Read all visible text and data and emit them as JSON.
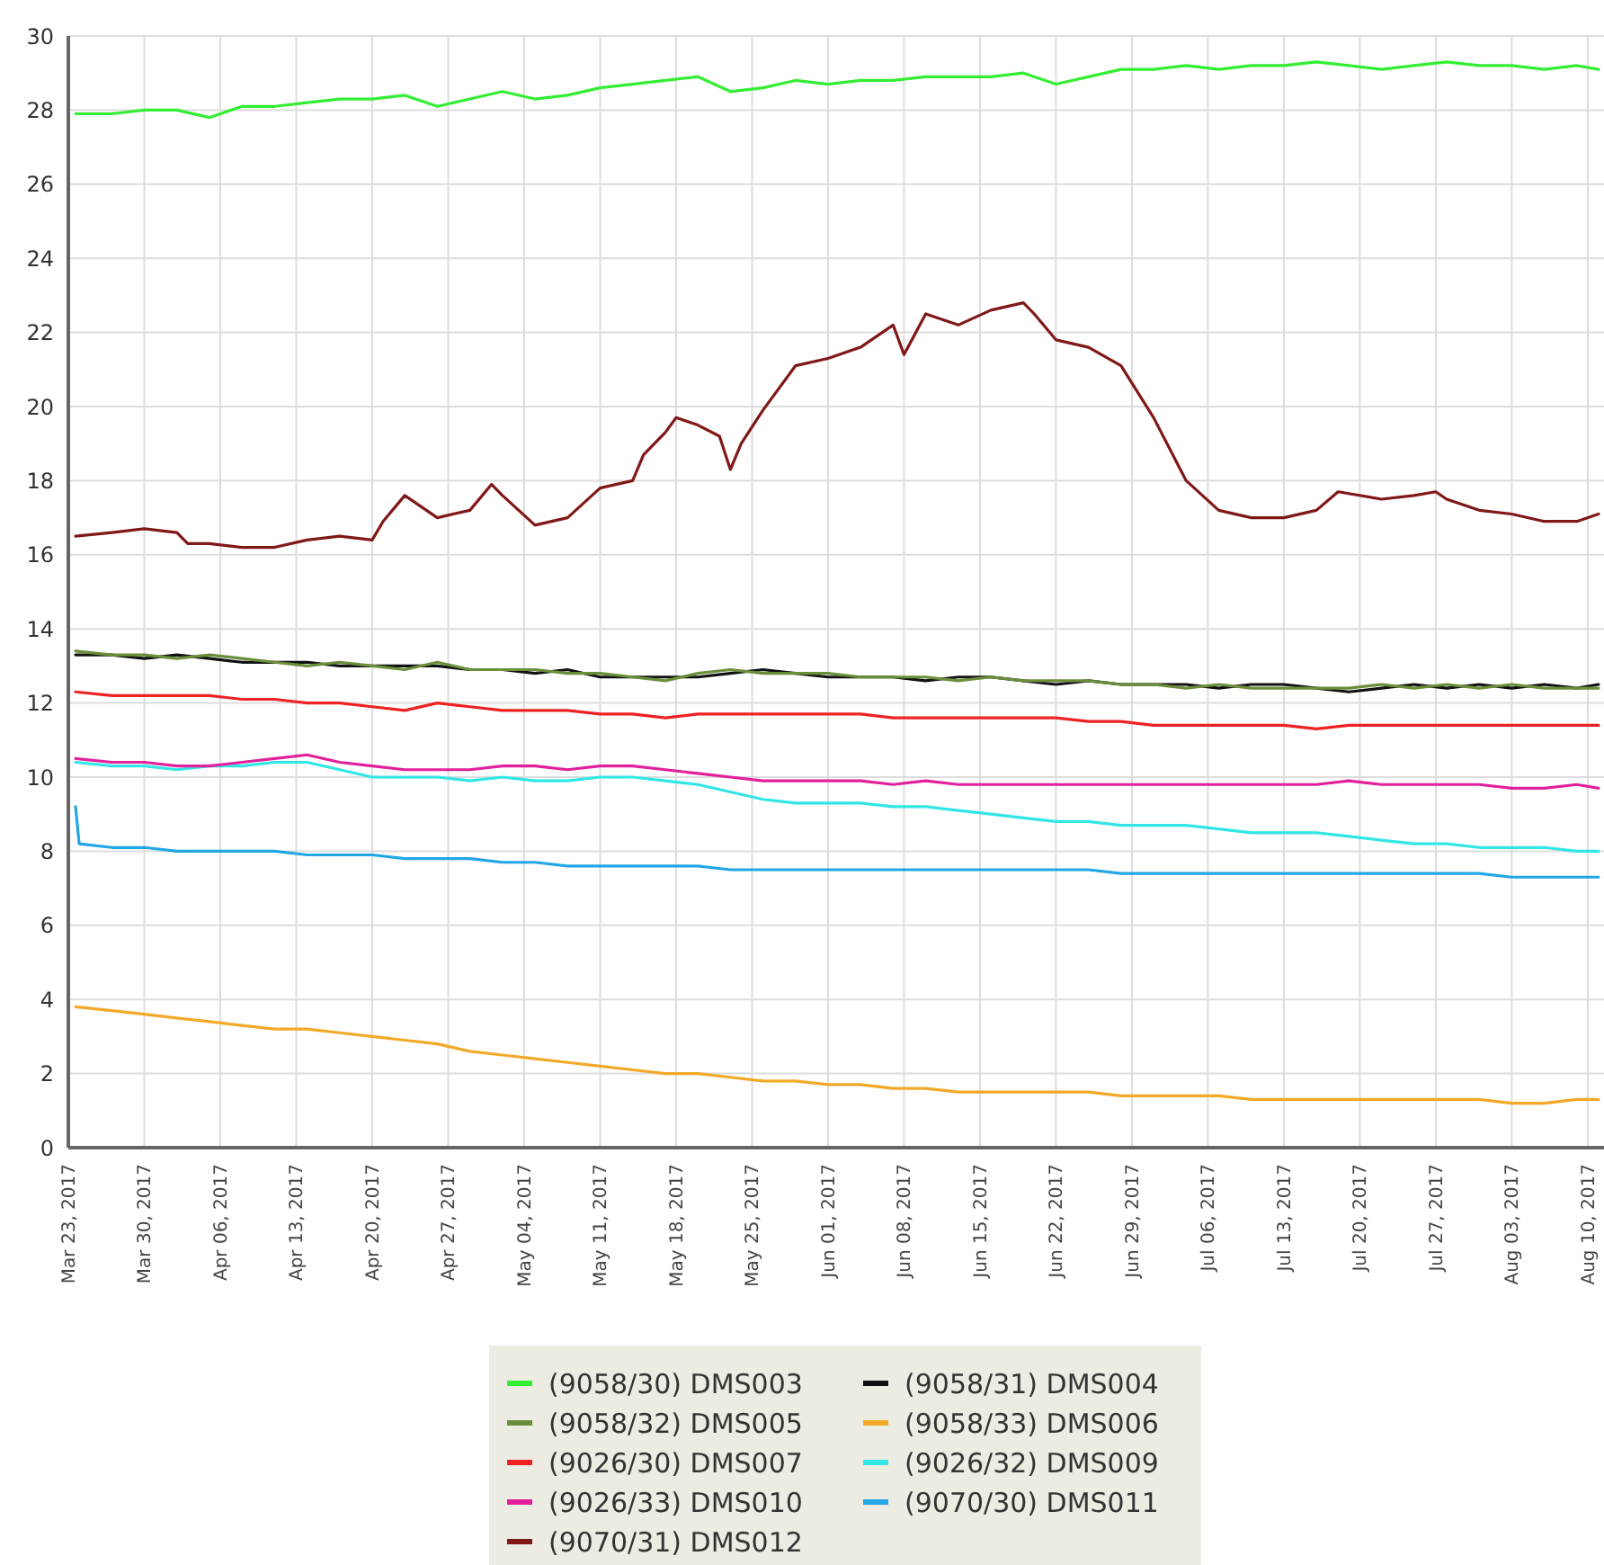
{
  "chart_data": {
    "type": "line",
    "x": [
      "2017-03-23T16:00",
      "2017-03-27",
      "2017-03-30",
      "2017-04-02",
      "2017-04-05",
      "2017-04-08",
      "2017-04-11",
      "2017-04-14",
      "2017-04-17",
      "2017-04-20",
      "2017-04-23",
      "2017-04-26",
      "2017-04-29",
      "2017-05-02",
      "2017-05-05",
      "2017-05-08",
      "2017-05-11",
      "2017-05-14",
      "2017-05-17",
      "2017-05-20",
      "2017-05-23",
      "2017-05-26",
      "2017-05-29",
      "2017-06-01",
      "2017-06-04",
      "2017-06-07",
      "2017-06-10",
      "2017-06-13",
      "2017-06-16",
      "2017-06-19",
      "2017-06-22",
      "2017-06-25",
      "2017-06-28",
      "2017-07-01",
      "2017-07-04",
      "2017-07-07",
      "2017-07-10",
      "2017-07-13",
      "2017-07-16",
      "2017-07-19",
      "2017-07-22",
      "2017-07-25",
      "2017-07-28",
      "2017-07-31",
      "2017-08-03",
      "2017-08-06",
      "2017-08-09",
      "2017-08-11"
    ],
    "series": [
      {
        "name": "(9058/30) DMS003",
        "color": "#33ee33",
        "values": [
          27.9,
          27.9,
          28.0,
          28.0,
          27.8,
          28.1,
          28.1,
          28.2,
          28.3,
          28.3,
          28.4,
          28.1,
          28.3,
          28.5,
          28.3,
          28.4,
          28.6,
          28.7,
          28.8,
          28.9,
          28.5,
          28.6,
          28.8,
          28.7,
          28.8,
          28.8,
          28.9,
          28.9,
          28.9,
          29.0,
          28.7,
          28.9,
          29.1,
          29.1,
          29.2,
          29.1,
          29.2,
          29.2,
          29.3,
          29.2,
          29.1,
          29.2,
          29.3,
          29.2,
          29.2,
          29.1,
          29.2,
          29.1
        ]
      },
      {
        "name": "(9058/31) DMS004",
        "color": "#111111",
        "values": [
          13.3,
          13.3,
          13.2,
          13.3,
          13.2,
          13.1,
          13.1,
          13.1,
          13.0,
          13.0,
          13.0,
          13.0,
          12.9,
          12.9,
          12.8,
          12.9,
          12.7,
          12.7,
          12.7,
          12.7,
          12.8,
          12.9,
          12.8,
          12.7,
          12.7,
          12.7,
          12.6,
          12.7,
          12.7,
          12.6,
          12.5,
          12.6,
          12.5,
          12.5,
          12.5,
          12.4,
          12.5,
          12.5,
          12.4,
          12.3,
          12.4,
          12.5,
          12.4,
          12.5,
          12.4,
          12.5,
          12.4,
          12.5
        ]
      },
      {
        "name": "(9058/32) DMS005",
        "color": "#6b8e3a",
        "values": [
          13.4,
          13.3,
          13.3,
          13.2,
          13.3,
          13.2,
          13.1,
          13.0,
          13.1,
          13.0,
          12.9,
          13.1,
          12.9,
          12.9,
          12.9,
          12.8,
          12.8,
          12.7,
          12.6,
          12.8,
          12.9,
          12.8,
          12.8,
          12.8,
          12.7,
          12.7,
          12.7,
          12.6,
          12.7,
          12.6,
          12.6,
          12.6,
          12.5,
          12.5,
          12.4,
          12.5,
          12.4,
          12.4,
          12.4,
          12.4,
          12.5,
          12.4,
          12.5,
          12.4,
          12.5,
          12.4,
          12.4,
          12.4
        ]
      },
      {
        "name": "(9058/33) DMS006",
        "color": "#f2a928",
        "values": [
          3.8,
          3.7,
          3.6,
          3.5,
          3.4,
          3.3,
          3.2,
          3.2,
          3.1,
          3.0,
          2.9,
          2.8,
          2.6,
          2.5,
          2.4,
          2.3,
          2.2,
          2.1,
          2.0,
          2.0,
          1.9,
          1.8,
          1.8,
          1.7,
          1.7,
          1.6,
          1.6,
          1.5,
          1.5,
          1.5,
          1.5,
          1.5,
          1.4,
          1.4,
          1.4,
          1.4,
          1.3,
          1.3,
          1.3,
          1.3,
          1.3,
          1.3,
          1.3,
          1.3,
          1.2,
          1.2,
          1.3,
          1.3
        ]
      },
      {
        "name": "(9026/30) DMS007",
        "color": "#ee2222",
        "values": [
          12.3,
          12.2,
          12.2,
          12.2,
          12.2,
          12.1,
          12.1,
          12.0,
          12.0,
          11.9,
          11.8,
          12.0,
          11.9,
          11.8,
          11.8,
          11.8,
          11.7,
          11.7,
          11.6,
          11.7,
          11.7,
          11.7,
          11.7,
          11.7,
          11.7,
          11.6,
          11.6,
          11.6,
          11.6,
          11.6,
          11.6,
          11.5,
          11.5,
          11.4,
          11.4,
          11.4,
          11.4,
          11.4,
          11.3,
          11.4,
          11.4,
          11.4,
          11.4,
          11.4,
          11.4,
          11.4,
          11.4,
          11.4
        ]
      },
      {
        "name": "(9026/32) DMS009",
        "color": "#33e6e6",
        "values": [
          10.4,
          10.3,
          10.3,
          10.2,
          10.3,
          10.3,
          10.4,
          10.4,
          10.2,
          10.0,
          10.0,
          10.0,
          9.9,
          10.0,
          9.9,
          9.9,
          10.0,
          10.0,
          9.9,
          9.8,
          9.6,
          9.4,
          9.3,
          9.3,
          9.3,
          9.2,
          9.2,
          9.1,
          9.0,
          8.9,
          8.8,
          8.8,
          8.7,
          8.7,
          8.7,
          8.6,
          8.5,
          8.5,
          8.5,
          8.4,
          8.3,
          8.2,
          8.2,
          8.1,
          8.1,
          8.1,
          8.0,
          8.0
        ]
      },
      {
        "name": "(9026/33) DMS010",
        "color": "#e2209c",
        "values": [
          10.5,
          10.4,
          10.4,
          10.3,
          10.3,
          10.4,
          10.5,
          10.6,
          10.4,
          10.3,
          10.2,
          10.2,
          10.2,
          10.3,
          10.3,
          10.2,
          10.3,
          10.3,
          10.2,
          10.1,
          10.0,
          9.9,
          9.9,
          9.9,
          9.9,
          9.8,
          9.9,
          9.8,
          9.8,
          9.8,
          9.8,
          9.8,
          9.8,
          9.8,
          9.8,
          9.8,
          9.8,
          9.8,
          9.8,
          9.9,
          9.8,
          9.8,
          9.8,
          9.8,
          9.7,
          9.7,
          9.8,
          9.7
        ]
      },
      {
        "name": "(9070/30) DMS011",
        "color": "#22a6e6",
        "x": [
          "2017-03-23T16:00",
          "2017-03-24",
          "2017-03-27",
          "2017-03-30",
          "2017-04-02",
          "2017-04-05",
          "2017-04-08",
          "2017-04-11",
          "2017-04-14",
          "2017-04-17",
          "2017-04-20",
          "2017-04-23",
          "2017-04-26",
          "2017-04-29",
          "2017-05-02",
          "2017-05-05",
          "2017-05-08",
          "2017-05-11",
          "2017-05-14",
          "2017-05-17",
          "2017-05-20",
          "2017-05-23",
          "2017-05-26",
          "2017-05-29",
          "2017-06-01",
          "2017-06-04",
          "2017-06-07",
          "2017-06-10",
          "2017-06-13",
          "2017-06-16",
          "2017-06-19",
          "2017-06-22",
          "2017-06-25",
          "2017-06-28",
          "2017-07-01",
          "2017-07-04",
          "2017-07-07",
          "2017-07-10",
          "2017-07-13",
          "2017-07-16",
          "2017-07-19",
          "2017-07-22",
          "2017-07-25",
          "2017-07-28",
          "2017-07-31",
          "2017-08-03",
          "2017-08-06",
          "2017-08-09",
          "2017-08-11"
        ],
        "values": [
          9.2,
          8.2,
          8.1,
          8.1,
          8.0,
          8.0,
          8.0,
          8.0,
          7.9,
          7.9,
          7.9,
          7.8,
          7.8,
          7.8,
          7.7,
          7.7,
          7.6,
          7.6,
          7.6,
          7.6,
          7.6,
          7.5,
          7.5,
          7.5,
          7.5,
          7.5,
          7.5,
          7.5,
          7.5,
          7.5,
          7.5,
          7.5,
          7.5,
          7.4,
          7.4,
          7.4,
          7.4,
          7.4,
          7.4,
          7.4,
          7.4,
          7.4,
          7.4,
          7.4,
          7.4,
          7.3,
          7.3,
          7.3,
          7.3
        ]
      },
      {
        "name": "(9070/31) DMS012",
        "color": "#801818",
        "x": [
          "2017-03-23T16:00",
          "2017-03-27",
          "2017-03-30",
          "2017-04-02",
          "2017-04-03",
          "2017-04-05",
          "2017-04-08",
          "2017-04-11",
          "2017-04-14",
          "2017-04-17",
          "2017-04-20",
          "2017-04-21",
          "2017-04-23",
          "2017-04-26",
          "2017-04-29",
          "2017-05-01",
          "2017-05-02",
          "2017-05-05",
          "2017-05-08",
          "2017-05-11",
          "2017-05-14",
          "2017-05-15",
          "2017-05-17",
          "2017-05-18",
          "2017-05-20",
          "2017-05-22",
          "2017-05-23",
          "2017-05-24",
          "2017-05-26",
          "2017-05-29",
          "2017-06-01",
          "2017-06-04",
          "2017-06-07",
          "2017-06-08",
          "2017-06-10",
          "2017-06-13",
          "2017-06-16",
          "2017-06-19",
          "2017-06-20",
          "2017-06-22",
          "2017-06-25",
          "2017-06-28",
          "2017-07-01",
          "2017-07-04",
          "2017-07-07",
          "2017-07-10",
          "2017-07-13",
          "2017-07-16",
          "2017-07-18",
          "2017-07-22",
          "2017-07-25",
          "2017-07-27",
          "2017-07-28",
          "2017-07-31",
          "2017-08-03",
          "2017-08-06",
          "2017-08-09",
          "2017-08-11"
        ],
        "values": [
          16.5,
          16.6,
          16.7,
          16.6,
          16.3,
          16.3,
          16.2,
          16.2,
          16.4,
          16.5,
          16.4,
          16.9,
          17.6,
          17.0,
          17.2,
          17.9,
          17.6,
          16.8,
          17.0,
          17.8,
          18.0,
          18.7,
          19.3,
          19.7,
          19.5,
          19.2,
          18.3,
          19.0,
          19.9,
          21.1,
          21.3,
          21.6,
          22.2,
          21.4,
          22.5,
          22.2,
          22.6,
          22.8,
          22.5,
          21.8,
          21.6,
          21.1,
          19.7,
          18.0,
          17.2,
          17.0,
          17.0,
          17.2,
          17.7,
          17.5,
          17.6,
          17.7,
          17.5,
          17.2,
          17.1,
          16.9,
          16.9,
          17.1
        ]
      }
    ],
    "xlim": [
      "2017-03-23",
      "2017-08-11T12:00"
    ],
    "xticks": [
      {
        "value": "2017-03-23",
        "label": "Mar 23, 2017"
      },
      {
        "value": "2017-03-30",
        "label": "Mar 30, 2017"
      },
      {
        "value": "2017-04-06",
        "label": "Apr 06, 2017"
      },
      {
        "value": "2017-04-13",
        "label": "Apr 13, 2017"
      },
      {
        "value": "2017-04-20",
        "label": "Apr 20, 2017"
      },
      {
        "value": "2017-04-27",
        "label": "Apr 27, 2017"
      },
      {
        "value": "2017-05-04",
        "label": "May 04, 2017"
      },
      {
        "value": "2017-05-11",
        "label": "May 11, 2017"
      },
      {
        "value": "2017-05-18",
        "label": "May 18, 2017"
      },
      {
        "value": "2017-05-25",
        "label": "May 25, 2017"
      },
      {
        "value": "2017-06-01",
        "label": "Jun 01, 2017"
      },
      {
        "value": "2017-06-08",
        "label": "Jun 08, 2017"
      },
      {
        "value": "2017-06-15",
        "label": "Jun 15, 2017"
      },
      {
        "value": "2017-06-22",
        "label": "Jun 22, 2017"
      },
      {
        "value": "2017-06-29",
        "label": "Jun 29, 2017"
      },
      {
        "value": "2017-07-06",
        "label": "Jul 06, 2017"
      },
      {
        "value": "2017-07-13",
        "label": "Jul 13, 2017"
      },
      {
        "value": "2017-07-20",
        "label": "Jul 20, 2017"
      },
      {
        "value": "2017-07-27",
        "label": "Jul 27, 2017"
      },
      {
        "value": "2017-08-03",
        "label": "Aug 03, 2017"
      },
      {
        "value": "2017-08-10",
        "label": "Aug 10, 2017"
      }
    ],
    "ylim": [
      0,
      30
    ],
    "yticks": [
      0,
      2,
      4,
      6,
      8,
      10,
      12,
      14,
      16,
      18,
      20,
      22,
      24,
      26,
      28,
      30
    ],
    "grid": true,
    "legend": "bottom",
    "marker": "none",
    "line_style": "solid"
  }
}
